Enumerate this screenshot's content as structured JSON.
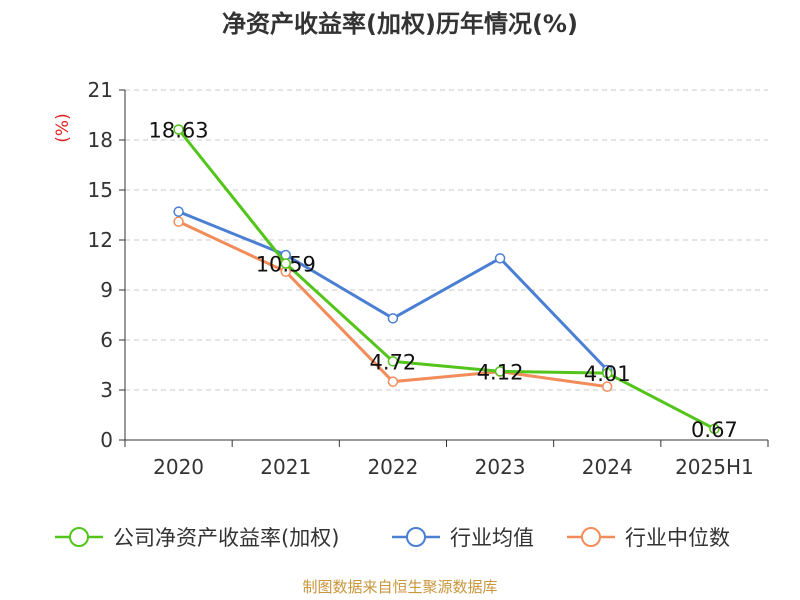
{
  "chart_data": {
    "type": "line",
    "title": "净资产收益率(加权)历年情况(%)",
    "unit": "(%)",
    "categories": [
      "2020",
      "2021",
      "2022",
      "2023",
      "2024",
      "2025H1"
    ],
    "y_ticks": [
      "21",
      "18",
      "15",
      "12",
      "9",
      "6",
      "3",
      "0"
    ],
    "ylim": [
      0,
      21
    ],
    "grid": true,
    "legend_position": "bottom",
    "series": [
      {
        "name": "公司净资产收益率(加权)",
        "color": "#52c41a",
        "values": [
          18.63,
          10.59,
          4.72,
          4.12,
          4.01,
          0.67
        ]
      },
      {
        "name": "行业均值",
        "color": "#4a7fd4",
        "values": [
          13.7,
          11.1,
          7.3,
          10.9,
          4.2,
          null
        ]
      },
      {
        "name": "行业中位数",
        "color": "#f28c5a",
        "values": [
          13.1,
          10.1,
          3.5,
          4.1,
          3.2,
          null
        ]
      }
    ],
    "data_labels": [
      "18.63",
      "10.59",
      "4.72",
      "4.12",
      "4.01",
      "0.67"
    ]
  },
  "source": "制图数据来自恒生聚源数据库"
}
